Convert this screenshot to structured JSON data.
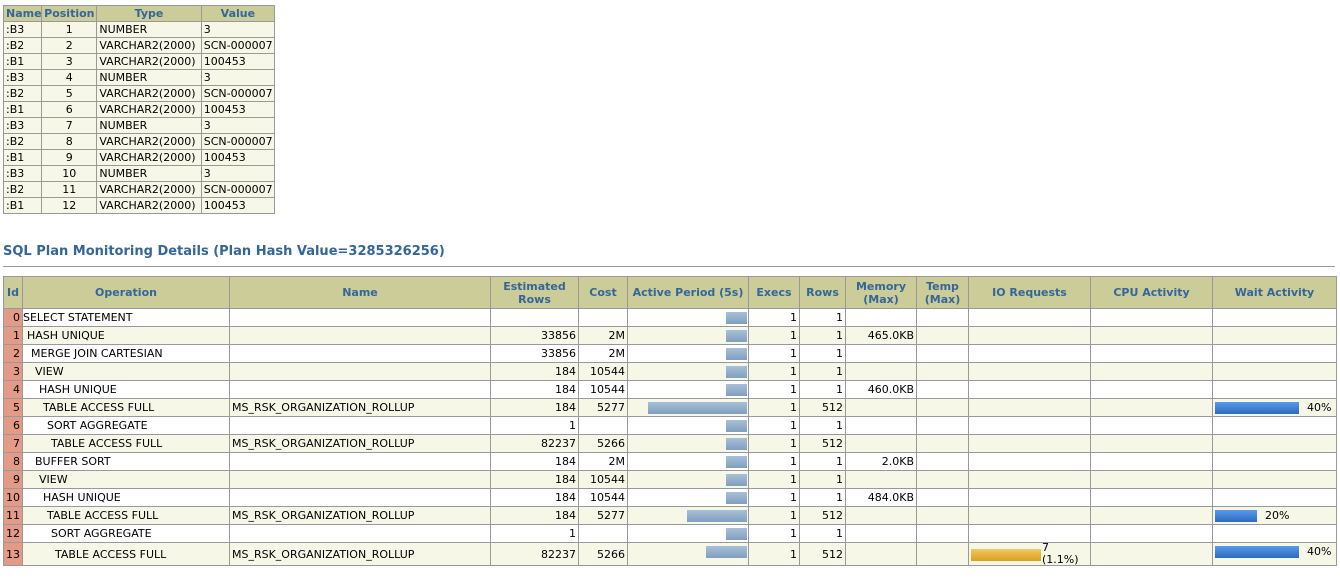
{
  "binds": {
    "headers": [
      "Name",
      "Position",
      "Type",
      "Value"
    ],
    "rows": [
      [
        ":B3",
        1,
        "NUMBER",
        3
      ],
      [
        ":B2",
        2,
        "VARCHAR2(2000)",
        "SCN-000007"
      ],
      [
        ":B1",
        3,
        "VARCHAR2(2000)",
        100453
      ],
      [
        ":B3",
        4,
        "NUMBER",
        3
      ],
      [
        ":B2",
        5,
        "VARCHAR2(2000)",
        "SCN-000007"
      ],
      [
        ":B1",
        6,
        "VARCHAR2(2000)",
        100453
      ],
      [
        ":B3",
        7,
        "NUMBER",
        3
      ],
      [
        ":B2",
        8,
        "VARCHAR2(2000)",
        "SCN-000007"
      ],
      [
        ":B1",
        9,
        "VARCHAR2(2000)",
        100453
      ],
      [
        ":B3",
        10,
        "NUMBER",
        3
      ],
      [
        ":B2",
        11,
        "VARCHAR2(2000)",
        "SCN-000007"
      ],
      [
        ":B1",
        12,
        "VARCHAR2(2000)",
        100453
      ]
    ]
  },
  "plan": {
    "title": "SQL Plan Monitoring Details (Plan Hash Value=3285326256)",
    "headers": [
      "Id",
      "Operation",
      "Name",
      "Estimated Rows",
      "Cost",
      "Active Period (5s)",
      "Execs",
      "Rows",
      "Memory (Max)",
      "Temp (Max)",
      "IO Requests",
      "CPU Activity",
      "Wait Activity"
    ],
    "rows": [
      {
        "id": 0,
        "operation": "SELECT STATEMENT",
        "execs": 1,
        "rows": 1
      },
      {
        "id": 1,
        "operation": "HASH UNIQUE",
        "estimated_rows": 33856,
        "cost": "2M",
        "execs": 1,
        "rows": 1,
        "memory": "465.0KB"
      },
      {
        "id": 2,
        "operation": "MERGE JOIN CARTESIAN",
        "estimated_rows": 33856,
        "cost": "2M",
        "execs": 1,
        "rows": 1
      },
      {
        "id": 3,
        "operation": "VIEW",
        "estimated_rows": 184,
        "cost": 10544,
        "execs": 1,
        "rows": 1
      },
      {
        "id": 4,
        "operation": "HASH UNIQUE",
        "estimated_rows": 184,
        "cost": 10544,
        "execs": 1,
        "rows": 1,
        "memory": "460.0KB"
      },
      {
        "id": 5,
        "operation": "TABLE ACCESS FULL",
        "name": "MS_RSK_ORGANIZATION_ROLLUP",
        "estimated_rows": 184,
        "cost": 5277,
        "execs": 1,
        "rows": 512,
        "wait_activity": "40%"
      },
      {
        "id": 6,
        "operation": "SORT AGGREGATE",
        "estimated_rows": 1,
        "execs": 1,
        "rows": 1
      },
      {
        "id": 7,
        "operation": "TABLE ACCESS FULL",
        "name": "MS_RSK_ORGANIZATION_ROLLUP",
        "estimated_rows": 82237,
        "cost": 5266,
        "execs": 1,
        "rows": 512
      },
      {
        "id": 8,
        "operation": "BUFFER SORT",
        "estimated_rows": 184,
        "cost": "2M",
        "execs": 1,
        "rows": 1,
        "memory": "2.0KB"
      },
      {
        "id": 9,
        "operation": "VIEW",
        "estimated_rows": 184,
        "cost": 10544,
        "execs": 1,
        "rows": 1
      },
      {
        "id": 10,
        "operation": "HASH UNIQUE",
        "estimated_rows": 184,
        "cost": 10544,
        "execs": 1,
        "rows": 1,
        "memory": "484.0KB"
      },
      {
        "id": 11,
        "operation": "TABLE ACCESS FULL",
        "name": "MS_RSK_ORGANIZATION_ROLLUP",
        "estimated_rows": 184,
        "cost": 5277,
        "execs": 1,
        "rows": 512,
        "wait_activity": "20%"
      },
      {
        "id": 12,
        "operation": "SORT AGGREGATE",
        "estimated_rows": 1,
        "execs": 1,
        "rows": 1
      },
      {
        "id": 13,
        "operation": "TABLE ACCESS FULL",
        "name": "MS_RSK_ORGANIZATION_ROLLUP",
        "estimated_rows": 82237,
        "cost": 5266,
        "execs": 1,
        "rows": 512,
        "io_requests": 7,
        "io_percent": "(1.1%)",
        "wait_activity": "40%"
      }
    ]
  }
}
